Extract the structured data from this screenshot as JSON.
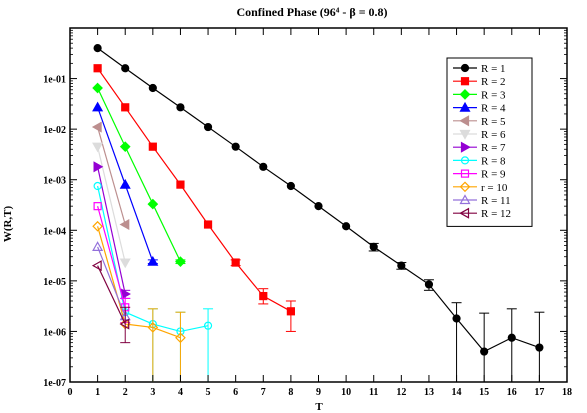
{
  "chart_data": {
    "type": "line",
    "title": "Confined Phase (96⁴ - β = 0.8)",
    "xlabel": "T",
    "ylabel": "W(R,T)",
    "xlim": [
      0,
      18
    ],
    "ylim": [
      1e-07,
      1
    ],
    "yscale": "log",
    "grid": false,
    "legend_position": "top-right",
    "x_ticks": [
      "0",
      "1",
      "2",
      "3",
      "4",
      "5",
      "6",
      "7",
      "8",
      "9",
      "10",
      "11",
      "12",
      "13",
      "14",
      "15",
      "16",
      "17",
      "18"
    ],
    "y_ticks": [
      "1e-07",
      "1e-06",
      "1e-05",
      "1e-04",
      "1e-03",
      "1e-02",
      "1e-01"
    ],
    "series": [
      {
        "name": "R = 1",
        "color": "#000000",
        "marker": "circle",
        "x": [
          1,
          2,
          3,
          4,
          5,
          6,
          7,
          8,
          9,
          10,
          11,
          12,
          13,
          14,
          15,
          16,
          17
        ],
        "y": [
          0.4,
          0.16,
          0.065,
          0.027,
          0.011,
          0.0045,
          0.0018,
          0.00075,
          0.0003,
          0.00012,
          4.7e-05,
          2e-05,
          8.5e-06,
          1.8e-06,
          4e-07,
          7.5e-07,
          4.8e-07
        ],
        "err_lo": [
          null,
          null,
          null,
          null,
          null,
          null,
          null,
          null,
          null,
          null,
          3.9e-05,
          1.7e-05,
          6.5e-06,
          null,
          null,
          null,
          null
        ],
        "err_hi": [
          null,
          null,
          null,
          null,
          null,
          null,
          null,
          null,
          null,
          null,
          5.5e-05,
          2.3e-05,
          1.05e-05,
          3.7e-06,
          2.3e-06,
          2.8e-06,
          2.4e-06
        ]
      },
      {
        "name": "R = 2",
        "color": "#ff0000",
        "marker": "square",
        "x": [
          1,
          2,
          3,
          4,
          5,
          6,
          7,
          8
        ],
        "y": [
          0.16,
          0.027,
          0.0045,
          0.0008,
          0.00013,
          2.3e-05,
          5e-06,
          2.5e-06
        ],
        "err_lo": [
          null,
          null,
          null,
          null,
          null,
          2e-05,
          3.5e-06,
          1e-06
        ],
        "err_hi": [
          null,
          null,
          null,
          null,
          null,
          2.6e-05,
          7e-06,
          4e-06
        ]
      },
      {
        "name": "R = 3",
        "color": "#00ff00",
        "marker": "diamond",
        "x": [
          1,
          2,
          3,
          4
        ],
        "y": [
          0.065,
          0.0045,
          0.00033,
          2.4e-05
        ],
        "err_lo": [
          null,
          null,
          null,
          2.2e-05
        ],
        "err_hi": [
          null,
          null,
          null,
          2.6e-05
        ]
      },
      {
        "name": "R = 4",
        "color": "#0000ff",
        "marker": "triangle-up",
        "x": [
          1,
          2,
          3
        ],
        "y": [
          0.027,
          0.0008,
          2.4e-05
        ],
        "err_lo": [
          null,
          null,
          2.2e-05
        ],
        "err_hi": [
          null,
          null,
          2.6e-05
        ]
      },
      {
        "name": "R = 5",
        "color": "#bc8f8f",
        "marker": "triangle-left",
        "x": [
          1,
          2
        ],
        "y": [
          0.011,
          0.00013
        ]
      },
      {
        "name": "R = 6",
        "color": "#dcdcdc",
        "marker": "triangle-down",
        "x": [
          1,
          2
        ],
        "y": [
          0.0045,
          2.3e-05
        ]
      },
      {
        "name": "R = 7",
        "color": "#9400d3",
        "marker": "triangle-right",
        "x": [
          1,
          2
        ],
        "y": [
          0.0018,
          5.5e-06
        ],
        "err_lo": [
          null,
          4.5e-06
        ],
        "err_hi": [
          null,
          6.5e-06
        ]
      },
      {
        "name": "R = 8",
        "color": "#00ffff",
        "marker": "circle-open",
        "x": [
          1,
          2,
          3,
          4,
          5
        ],
        "y": [
          0.00075,
          2.4e-06,
          1.4e-06,
          1e-06,
          1.3e-06
        ],
        "err_lo": [
          null,
          null,
          null,
          null,
          null
        ],
        "err_hi": [
          null,
          null,
          2.8e-06,
          2.4e-06,
          2.8e-06
        ]
      },
      {
        "name": "R = 9",
        "color": "#ff00ff",
        "marker": "square-open",
        "x": [
          1,
          2
        ],
        "y": [
          0.0003,
          3e-06
        ],
        "err_lo": [
          null,
          1.5e-06
        ],
        "err_hi": [
          null,
          4.5e-06
        ]
      },
      {
        "name": "r = 10",
        "color": "#ffa500",
        "marker": "diamond-open",
        "x": [
          1,
          2,
          3,
          4
        ],
        "y": [
          0.00012,
          1.4e-06,
          1.2e-06,
          7.5e-07
        ],
        "err_lo": [
          null,
          null,
          null,
          null
        ],
        "err_hi": [
          null,
          null,
          2.8e-06,
          2.4e-06
        ]
      },
      {
        "name": "R = 11",
        "color": "#9370db",
        "marker": "triangle-up-open",
        "x": [
          1,
          2
        ],
        "y": [
          4.7e-05,
          2e-06
        ]
      },
      {
        "name": "R = 12",
        "color": "#800040",
        "marker": "triangle-left-open",
        "x": [
          1,
          2
        ],
        "y": [
          2e-05,
          1.4e-06
        ],
        "err_lo": [
          null,
          6e-07
        ],
        "err_hi": [
          null,
          3e-06
        ]
      }
    ]
  }
}
